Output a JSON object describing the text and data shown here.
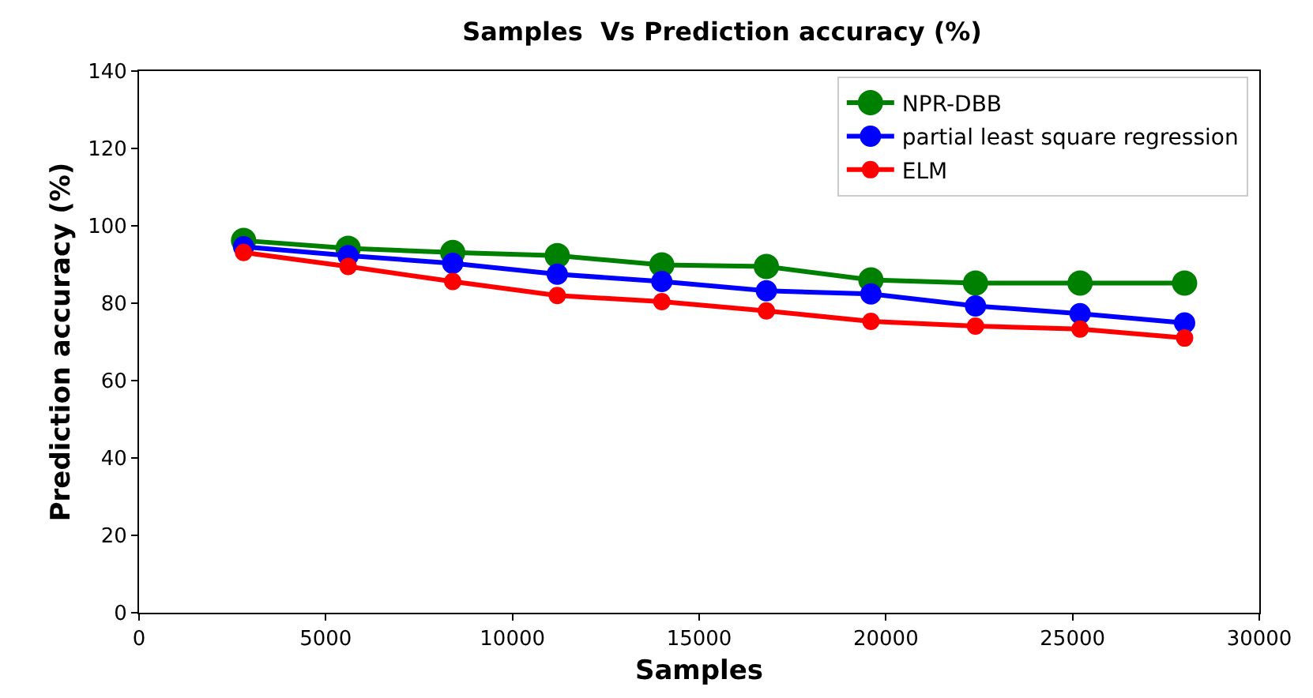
{
  "chart_data": {
    "type": "line",
    "title": "Samples  Vs Prediction accuracy (%)",
    "xlabel": "Samples",
    "ylabel": "Prediction accuracy (%)",
    "x": [
      2800,
      5600,
      8400,
      11200,
      14000,
      16800,
      19600,
      22400,
      25200,
      28000
    ],
    "series": [
      {
        "name": "NPR-DBB",
        "color": "#008000",
        "values": [
          96.2,
          94.2,
          93.1,
          92.3,
          89.9,
          89.5,
          86,
          85.2,
          85.2,
          85.2
        ]
      },
      {
        "name": "partial least square regression",
        "color": "#0000ff",
        "values": [
          94.6,
          92.3,
          90.3,
          87.5,
          85.6,
          83.2,
          82.4,
          79.3,
          77.3,
          74.9
        ]
      },
      {
        "name": "ELM",
        "color": "#ff0000",
        "values": [
          93.1,
          89.5,
          85.6,
          82,
          80.4,
          78,
          75.3,
          74.1,
          73.3,
          71
        ]
      }
    ],
    "xlim": [
      0,
      30000
    ],
    "xticks": [
      0,
      5000,
      10000,
      15000,
      20000,
      25000,
      30000
    ],
    "ylim": [
      0,
      140
    ],
    "yticks": [
      0,
      20,
      40,
      60,
      80,
      100,
      120,
      140
    ],
    "grid": false,
    "legend": "top right",
    "marker": "circle",
    "line_style": "solid"
  }
}
